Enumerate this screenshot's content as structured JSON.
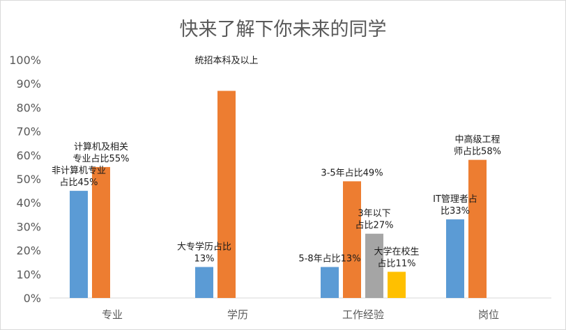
{
  "chart_data": {
    "type": "bar",
    "title": "快来了解下你未来的同学",
    "xlabel": "",
    "ylabel": "",
    "ylim": [
      0,
      1
    ],
    "y_ticks": [
      "0%",
      "10%",
      "20%",
      "30%",
      "40%",
      "50%",
      "60%",
      "70%",
      "80%",
      "90%",
      "100%"
    ],
    "grid": false,
    "legend": "none",
    "categories": [
      "专业",
      "学历",
      "工作经验",
      "岗位"
    ],
    "bars": [
      {
        "category": "专业",
        "value": 0.45,
        "color": "#5b9bd5",
        "label_lines": [
          "非计算机专业",
          "占比45%"
        ]
      },
      {
        "category": "专业",
        "value": 0.55,
        "color": "#ed7d31",
        "label_lines": [
          "计算机及相关",
          "专业占比55%"
        ]
      },
      {
        "category": "学历",
        "value": 0.13,
        "color": "#5b9bd5",
        "label_lines": [
          "大专学历占比",
          "13%"
        ]
      },
      {
        "category": "学历",
        "value": 0.87,
        "color": "#ed7d31",
        "label_lines": [
          "统招本科及以上"
        ]
      },
      {
        "category": "工作经验",
        "value": 0.13,
        "color": "#5b9bd5",
        "label_lines": [
          "5-8年占比13%"
        ]
      },
      {
        "category": "工作经验",
        "value": 0.49,
        "color": "#ed7d31",
        "label_lines": [
          "3-5年占比49%"
        ]
      },
      {
        "category": "工作经验",
        "value": 0.27,
        "color": "#a5a5a5",
        "label_lines": [
          "3年以下",
          "占比27%"
        ]
      },
      {
        "category": "工作经验",
        "value": 0.11,
        "color": "#ffc000",
        "label_lines": [
          "大学在校生",
          "占比11%"
        ]
      },
      {
        "category": "岗位",
        "value": 0.33,
        "color": "#5b9bd5",
        "label_lines": [
          "IT管理者占",
          "比33%"
        ]
      },
      {
        "category": "岗位",
        "value": 0.58,
        "color": "#ed7d31",
        "label_lines": [
          "中高级工程",
          "师占比58%"
        ]
      }
    ]
  }
}
